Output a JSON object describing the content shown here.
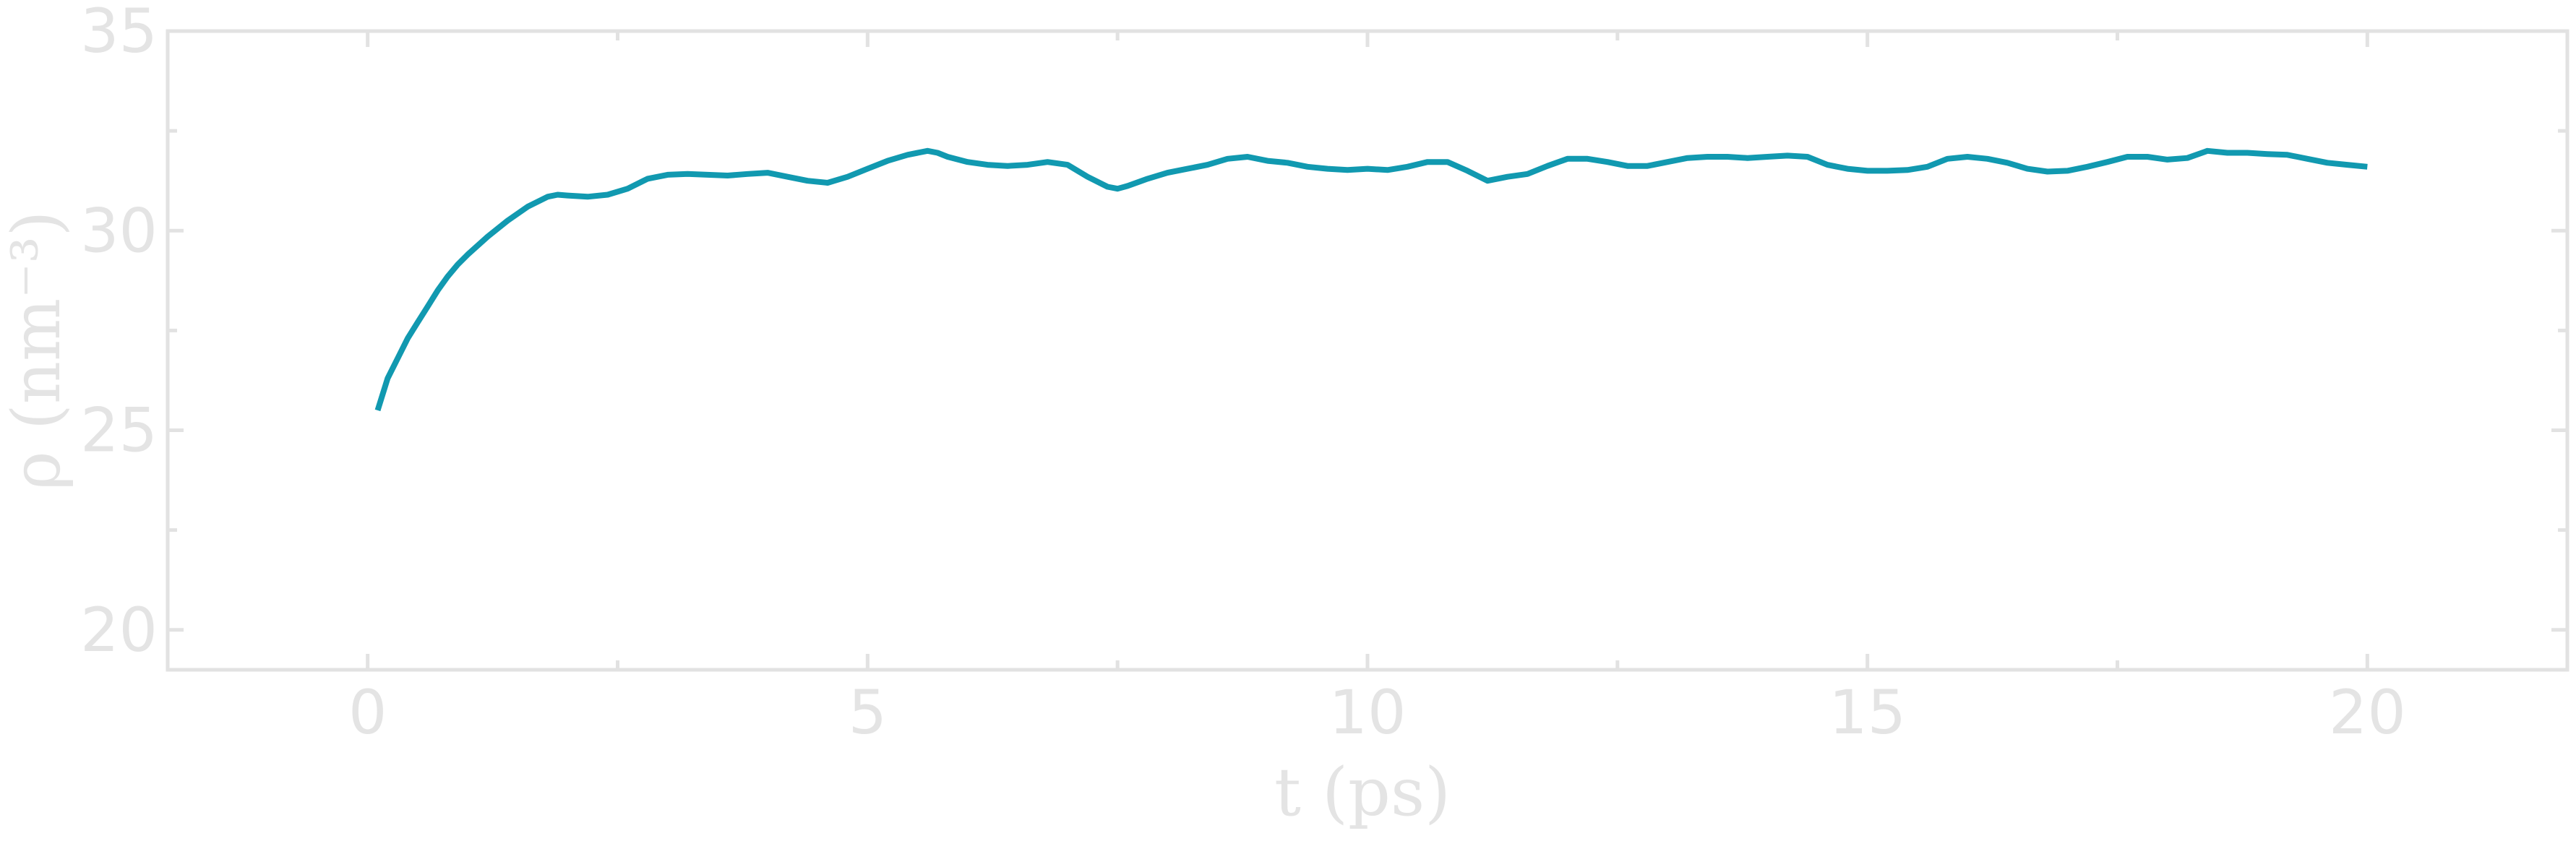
{
  "chart_data": {
    "type": "line",
    "title": "",
    "xlabel": "t (ps)",
    "ylabel": "ρ (nm⁻³)",
    "xlim": [
      -2,
      22
    ],
    "ylim": [
      19,
      35
    ],
    "x_ticks": [
      0,
      5,
      10,
      15,
      20
    ],
    "x_tick_labels": [
      "0",
      "5",
      "10",
      "15",
      "20"
    ],
    "x_minor_ticks": [
      2.5,
      7.5,
      12.5,
      17.5
    ],
    "y_ticks": [
      20,
      25,
      30,
      35
    ],
    "y_tick_labels": [
      "20",
      "25",
      "30",
      "35"
    ],
    "y_minor_ticks": [
      22.5,
      27.5,
      32.5
    ],
    "grid": false,
    "legend": "none",
    "colors": {
      "line": "#1199b0",
      "axes": "#e2e2e2",
      "text": "#e4e4e4"
    },
    "series": [
      {
        "x": [
          0.1,
          0.2,
          0.3,
          0.4,
          0.5,
          0.6,
          0.7,
          0.8,
          0.9,
          1.0,
          1.2,
          1.4,
          1.6,
          1.8,
          1.9,
          2.0,
          2.2,
          2.4,
          2.6,
          2.8,
          3.0,
          3.2,
          3.4,
          3.6,
          3.8,
          4.0,
          4.2,
          4.4,
          4.6,
          4.8,
          5.0,
          5.2,
          5.4,
          5.6,
          5.7,
          5.8,
          6.0,
          6.2,
          6.4,
          6.6,
          6.8,
          7.0,
          7.2,
          7.4,
          7.5,
          7.6,
          7.8,
          8.0,
          8.2,
          8.4,
          8.6,
          8.8,
          9.0,
          9.2,
          9.4,
          9.6,
          9.8,
          10.0,
          10.2,
          10.4,
          10.6,
          10.8,
          11.0,
          11.2,
          11.4,
          11.6,
          11.8,
          12.0,
          12.2,
          12.4,
          12.6,
          12.8,
          13.0,
          13.2,
          13.4,
          13.6,
          13.8,
          14.0,
          14.2,
          14.4,
          14.6,
          14.8,
          15.0,
          15.2,
          15.4,
          15.6,
          15.8,
          16.0,
          16.2,
          16.4,
          16.6,
          16.8,
          17.0,
          17.2,
          17.4,
          17.6,
          17.8,
          18.0,
          18.2,
          18.4,
          18.6,
          18.8,
          19.0,
          19.2,
          19.4,
          19.6,
          19.8,
          20.0
        ],
        "values": [
          25.5,
          26.3,
          26.8,
          27.3,
          27.7,
          28.1,
          28.5,
          28.85,
          29.15,
          29.4,
          29.85,
          30.25,
          30.6,
          30.85,
          30.9,
          30.88,
          30.85,
          30.9,
          31.05,
          31.3,
          31.4,
          31.42,
          31.4,
          31.38,
          31.42,
          31.45,
          31.35,
          31.25,
          31.2,
          31.35,
          31.55,
          31.75,
          31.9,
          32.0,
          31.95,
          31.85,
          31.72,
          31.65,
          31.62,
          31.65,
          31.72,
          31.65,
          31.35,
          31.1,
          31.05,
          31.12,
          31.3,
          31.45,
          31.55,
          31.65,
          31.8,
          31.85,
          31.75,
          31.7,
          31.6,
          31.55,
          31.52,
          31.55,
          31.52,
          31.6,
          31.72,
          31.72,
          31.5,
          31.25,
          31.35,
          31.42,
          31.62,
          31.8,
          31.8,
          31.72,
          31.62,
          31.62,
          31.72,
          31.82,
          31.85,
          31.85,
          31.82,
          31.85,
          31.88,
          31.85,
          31.65,
          31.55,
          31.5,
          31.5,
          31.52,
          31.6,
          31.8,
          31.85,
          31.8,
          31.7,
          31.55,
          31.48,
          31.5,
          31.6,
          31.72,
          31.85,
          31.85,
          31.78,
          31.82,
          32.0,
          31.95,
          31.95,
          31.92,
          31.9,
          31.8,
          31.7,
          31.65,
          31.6
        ]
      }
    ]
  }
}
